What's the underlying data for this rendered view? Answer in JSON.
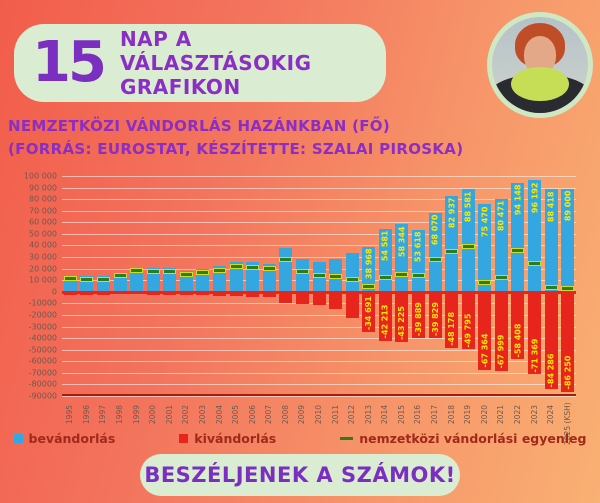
{
  "header": {
    "number": "15",
    "title_line1": "NAP A VÁLASZTÁSOKIG",
    "title_line2": "GRAFIKON"
  },
  "subtitle": {
    "line1": "NEMZETKÖZI VÁNDORLÁS HAZÁNKBAN (FŐ)",
    "line2": "(FORRÁS: EUROSTAT, KÉSZÍTETTE: SZALAI PIROSKA)"
  },
  "chart_data": {
    "type": "bar",
    "title": "Nemzetközi vándorlás hazánkban (fő)",
    "categories": [
      "1995",
      "1996",
      "1997",
      "1998",
      "1999",
      "2000",
      "2001",
      "2002",
      "2003",
      "2004",
      "2005",
      "2006",
      "2007",
      "2008",
      "2009",
      "2010",
      "2011",
      "2012",
      "2013",
      "2014",
      "2015",
      "2016",
      "2017",
      "2018",
      "2019",
      "2020",
      "2021",
      "2022",
      "2023",
      "2024",
      "2025 (KSH)"
    ],
    "series": [
      {
        "name": "bevándorlás",
        "color": "#35a7e0",
        "values": [
          14000,
          13700,
          13300,
          16100,
          20200,
          20200,
          20300,
          18000,
          19400,
          22200,
          25600,
          25700,
          24400,
          37700,
          27900,
          25500,
          28000,
          33700,
          38968,
          54581,
          58344,
          53618,
          68070,
          82937,
          88581,
          75470,
          80471,
          94148,
          96192,
          88418,
          89000
        ],
        "labels": [
          null,
          null,
          null,
          null,
          null,
          null,
          null,
          null,
          null,
          null,
          null,
          null,
          null,
          null,
          null,
          null,
          null,
          null,
          "38 968",
          "54 581",
          "58 344",
          "53 618",
          "68 070",
          "82 937",
          "88 581",
          "75 470",
          "80 471",
          "94 148",
          "96 192",
          "88 418",
          "89 000"
        ]
      },
      {
        "name": "kivándorlás",
        "color": "#e8251c",
        "values": [
          -2700,
          -2700,
          -2600,
          -2300,
          -2200,
          -2500,
          -2600,
          -2800,
          -3100,
          -3800,
          -3700,
          -4300,
          -4500,
          -9600,
          -10500,
          -11300,
          -15100,
          -22900,
          -34691,
          -42213,
          -43225,
          -39889,
          -39829,
          -48178,
          -49795,
          -67364,
          -67999,
          -58408,
          -71369,
          -84286,
          -86250
        ],
        "labels": [
          null,
          null,
          null,
          null,
          null,
          null,
          null,
          null,
          null,
          null,
          null,
          null,
          null,
          null,
          null,
          null,
          null,
          null,
          "-34 691",
          "-42 213",
          "-43 225",
          "-39 889",
          "-39 829",
          "-48 178",
          "-49 795",
          "-67 364",
          "-67 999",
          "-58 408",
          "-71 369",
          "-84 286",
          "-86 250"
        ]
      },
      {
        "name": "nemzetközi vándorlási egyenleg",
        "color": "#2f7d1a",
        "marker": "dash",
        "values": [
          11300,
          11000,
          10700,
          13800,
          18000,
          17700,
          17700,
          15200,
          16300,
          18400,
          21900,
          21400,
          19900,
          28100,
          17400,
          14200,
          12900,
          10800,
          4277,
          12368,
          15119,
          13729,
          28241,
          34759,
          38786,
          8106,
          12472,
          35740,
          24823,
          4132,
          2750
        ]
      }
    ],
    "ylim": [
      -90000,
      100000
    ],
    "ytick_step": 10000,
    "ytick_labels": [
      "100 000",
      "90 000",
      "80 000",
      "70 000",
      "60 000",
      "50 000",
      "40 000",
      "30 000",
      "20 000",
      "10 000",
      "0",
      "-10000",
      "-20000",
      "-30000",
      "-40000",
      "-50000",
      "-60000",
      "-70000",
      "-80000",
      "-90000"
    ],
    "grid": true,
    "legend_position": "bottom",
    "bar_label_color": "#ffe900",
    "note": "bar value labels shown from 2013 onward; earlier bar values estimated from gridlines"
  },
  "footer": {
    "button_label": "BESZÉLJENEK A SZÁMOK!"
  },
  "colors": {
    "background_left": "#f25d4b",
    "background_right": "#f9b073",
    "pill_green": "#daecd2",
    "purple": "#7b2fc0",
    "blue_bar": "#35a7e0",
    "red_bar": "#e8251c",
    "green_marker": "#2f7d1a",
    "label_yellow": "#ffe900",
    "axis_text": "#6d5a50",
    "legend_text": "#a02a1a"
  }
}
